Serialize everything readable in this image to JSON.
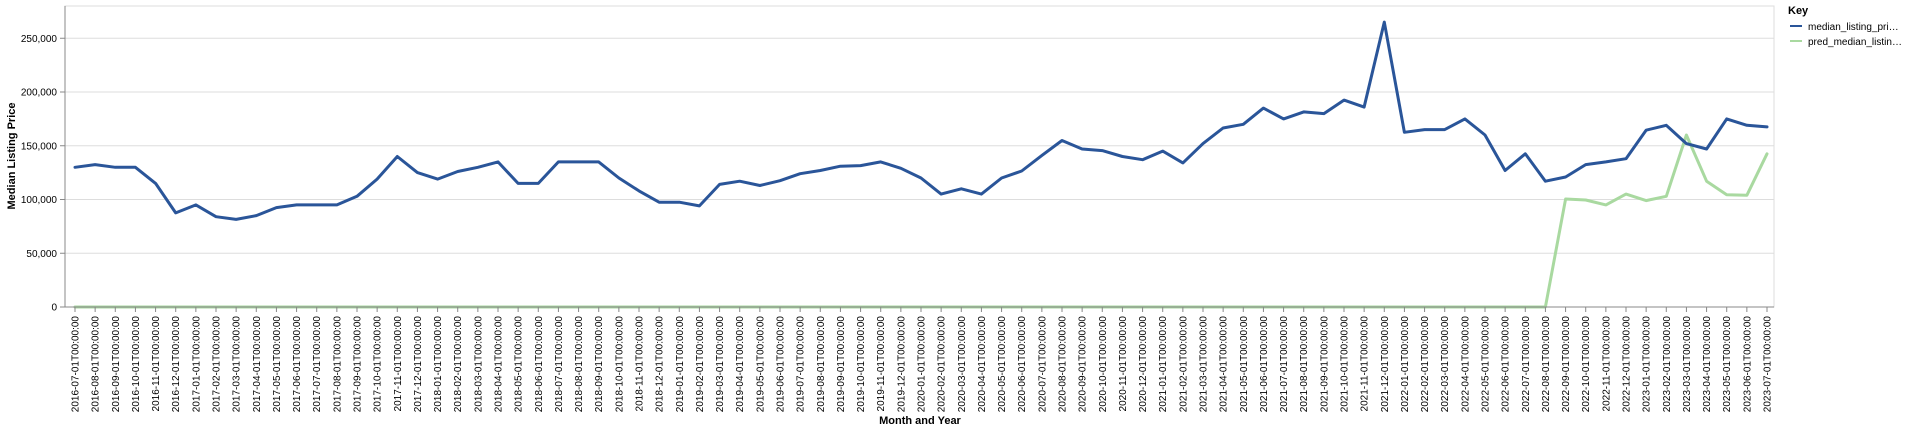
{
  "chart_data": {
    "type": "line",
    "title": "",
    "xlabel": "Month and Year",
    "ylabel": "Median Listing Price",
    "ylim": [
      0,
      280000
    ],
    "yticks": [
      0,
      50000,
      100000,
      150000,
      200000,
      250000
    ],
    "ytick_labels": [
      "0",
      "50,000",
      "100,000",
      "150,000",
      "200,000",
      "250,000"
    ],
    "grid": true,
    "legend": {
      "title": "Key",
      "position": "right",
      "entries": [
        "median_listing_pri…",
        "pred_median_listin…"
      ]
    },
    "x": [
      "2016-07-01T00:00:00",
      "2016-08-01T00:00:00",
      "2016-09-01T00:00:00",
      "2016-10-01T00:00:00",
      "2016-11-01T00:00:00",
      "2016-12-01T00:00:00",
      "2017-01-01T00:00:00",
      "2017-02-01T00:00:00",
      "2017-03-01T00:00:00",
      "2017-04-01T00:00:00",
      "2017-05-01T00:00:00",
      "2017-06-01T00:00:00",
      "2017-07-01T00:00:00",
      "2017-08-01T00:00:00",
      "2017-09-01T00:00:00",
      "2017-10-01T00:00:00",
      "2017-11-01T00:00:00",
      "2017-12-01T00:00:00",
      "2018-01-01T00:00:00",
      "2018-02-01T00:00:00",
      "2018-03-01T00:00:00",
      "2018-04-01T00:00:00",
      "2018-05-01T00:00:00",
      "2018-06-01T00:00:00",
      "2018-07-01T00:00:00",
      "2018-08-01T00:00:00",
      "2018-09-01T00:00:00",
      "2018-10-01T00:00:00",
      "2018-11-01T00:00:00",
      "2018-12-01T00:00:00",
      "2019-01-01T00:00:00",
      "2019-02-01T00:00:00",
      "2019-03-01T00:00:00",
      "2019-04-01T00:00:00",
      "2019-05-01T00:00:00",
      "2019-06-01T00:00:00",
      "2019-07-01T00:00:00",
      "2019-08-01T00:00:00",
      "2019-09-01T00:00:00",
      "2019-10-01T00:00:00",
      "2019-11-01T00:00:00",
      "2019-12-01T00:00:00",
      "2020-01-01T00:00:00",
      "2020-02-01T00:00:00",
      "2020-03-01T00:00:00",
      "2020-04-01T00:00:00",
      "2020-05-01T00:00:00",
      "2020-06-01T00:00:00",
      "2020-07-01T00:00:00",
      "2020-08-01T00:00:00",
      "2020-09-01T00:00:00",
      "2020-10-01T00:00:00",
      "2020-11-01T00:00:00",
      "2020-12-01T00:00:00",
      "2021-01-01T00:00:00",
      "2021-02-01T00:00:00",
      "2021-03-01T00:00:00",
      "2021-04-01T00:00:00",
      "2021-05-01T00:00:00",
      "2021-06-01T00:00:00",
      "2021-07-01T00:00:00",
      "2021-08-01T00:00:00",
      "2021-09-01T00:00:00",
      "2021-10-01T00:00:00",
      "2021-11-01T00:00:00",
      "2021-12-01T00:00:00",
      "2022-01-01T00:00:00",
      "2022-02-01T00:00:00",
      "2022-03-01T00:00:00",
      "2022-04-01T00:00:00",
      "2022-05-01T00:00:00",
      "2022-06-01T00:00:00",
      "2022-07-01T00:00:00",
      "2022-08-01T00:00:00",
      "2022-09-01T00:00:00",
      "2022-10-01T00:00:00",
      "2022-11-01T00:00:00",
      "2022-12-01T00:00:00",
      "2023-01-01T00:00:00",
      "2023-02-01T00:00:00",
      "2023-03-01T00:00:00",
      "2023-04-01T00:00:00",
      "2023-05-01T00:00:00",
      "2023-06-01T00:00:00",
      "2023-07-01T00:00:00"
    ],
    "series": [
      {
        "name": "median_listing_pri…",
        "color": "#2a5599",
        "values": [
          130000,
          132500,
          130000,
          130000,
          115000,
          87500,
          95000,
          84000,
          81500,
          85000,
          92500,
          95000,
          95000,
          95000,
          103000,
          119000,
          140000,
          125000,
          119000,
          126000,
          130000,
          135000,
          115000,
          115000,
          135000,
          135000,
          135000,
          120000,
          108000,
          97500,
          97500,
          94000,
          114000,
          117000,
          113000,
          117500,
          124000,
          127000,
          131000,
          131500,
          135000,
          129000,
          120000,
          105000,
          110000,
          105000,
          120000,
          126500,
          141000,
          154900,
          147000,
          145500,
          140000,
          137000,
          145000,
          134000,
          152000,
          166500,
          170000,
          185000,
          175000,
          181500,
          179900,
          192500,
          186000,
          265000,
          162500,
          165000,
          165000,
          175000,
          160000,
          127000,
          142500,
          117000,
          120900,
          132500,
          135000,
          138000,
          164500,
          169000,
          152000,
          147000,
          175000,
          169000,
          167500
        ]
      },
      {
        "name": "pred_median_listin…",
        "color": "#a9d9a0",
        "values": [
          0,
          0,
          0,
          0,
          0,
          0,
          0,
          0,
          0,
          0,
          0,
          0,
          0,
          0,
          0,
          0,
          0,
          0,
          0,
          0,
          0,
          0,
          0,
          0,
          0,
          0,
          0,
          0,
          0,
          0,
          0,
          0,
          0,
          0,
          0,
          0,
          0,
          0,
          0,
          0,
          0,
          0,
          0,
          0,
          0,
          0,
          0,
          0,
          0,
          0,
          0,
          0,
          0,
          0,
          0,
          0,
          0,
          0,
          0,
          0,
          0,
          0,
          0,
          0,
          0,
          0,
          0,
          0,
          0,
          0,
          0,
          0,
          0,
          0,
          100500,
          99500,
          95000,
          105000,
          99000,
          103000,
          160000,
          117000,
          104500,
          104000,
          142500
        ]
      }
    ]
  }
}
